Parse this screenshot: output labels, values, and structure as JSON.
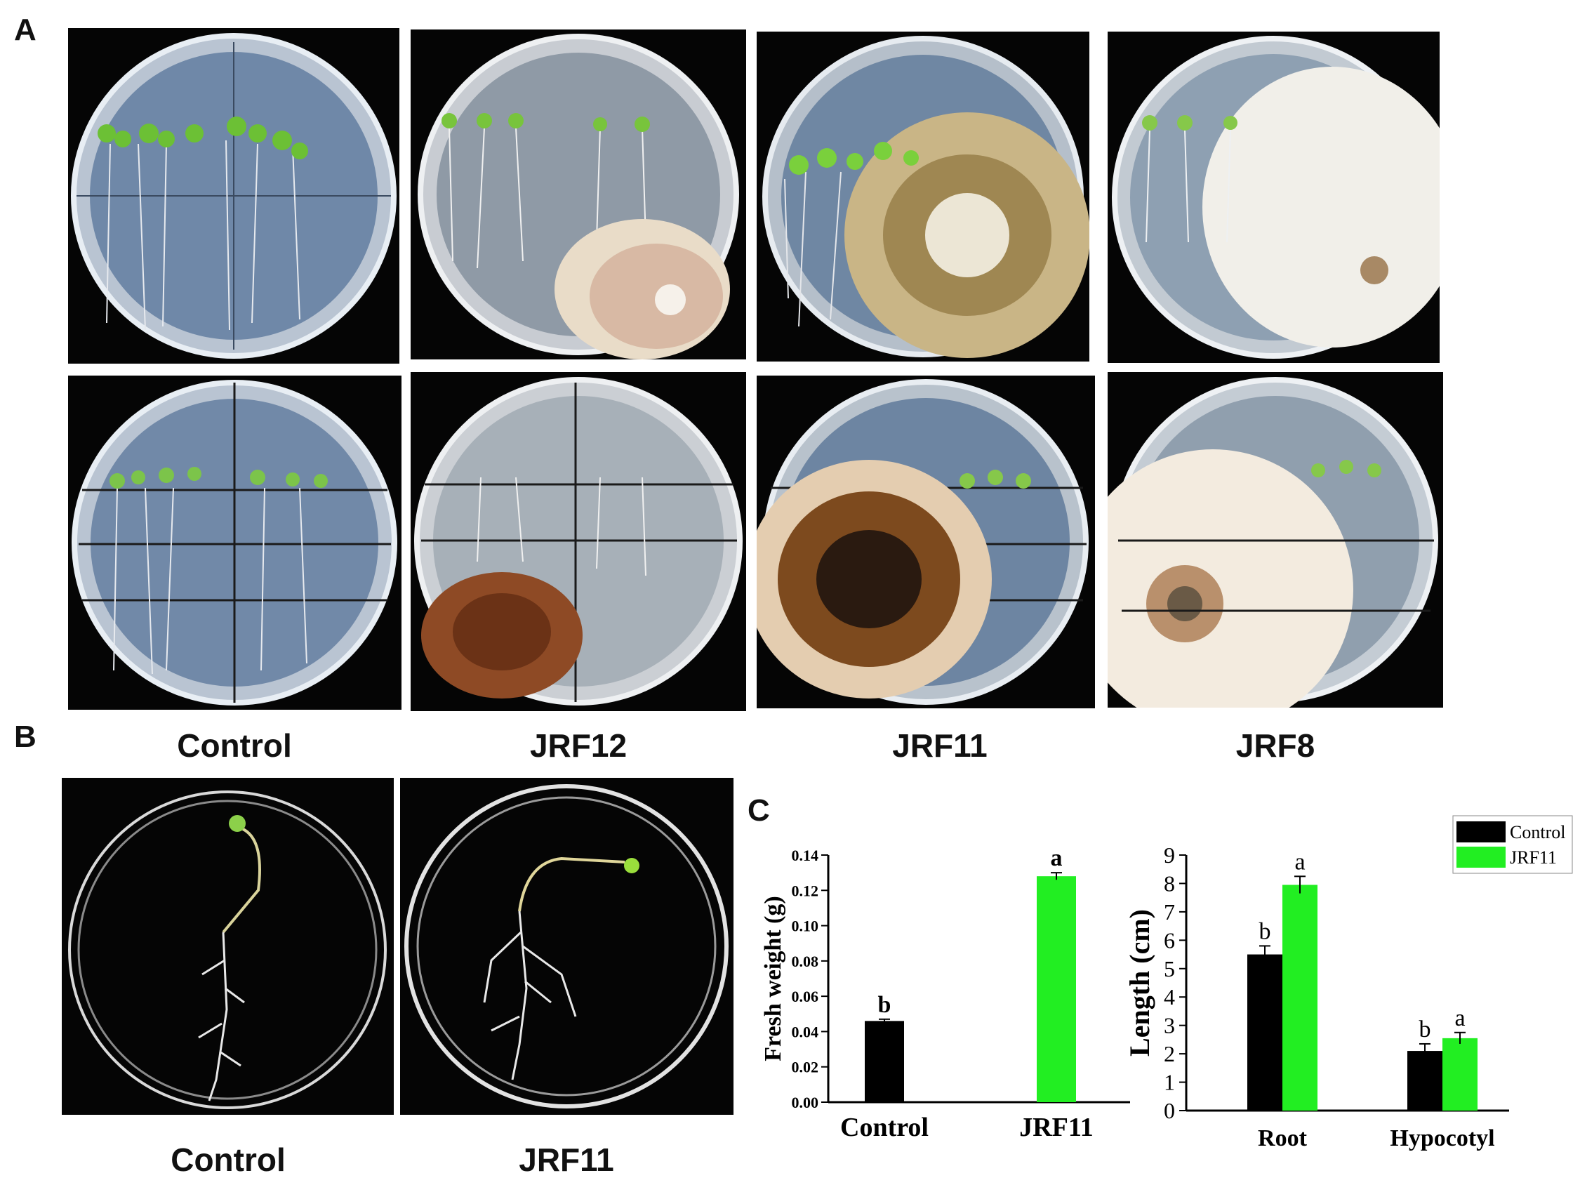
{
  "panels": {
    "a": "A",
    "b": "B",
    "c": "C"
  },
  "panel_a": {
    "labels": [
      "Control",
      "JRF12",
      "JRF11",
      "JRF8"
    ]
  },
  "panel_b": {
    "labels": [
      "Control",
      "JRF11"
    ]
  },
  "colors": {
    "control": "#000000",
    "jrf11": "#22ee22",
    "background": "#ffffff"
  },
  "chart_data": [
    {
      "type": "bar",
      "categories": [
        "Control",
        "JRF11"
      ],
      "values": [
        0.046,
        0.128
      ],
      "errors": [
        0.001,
        0.002
      ],
      "letters": [
        "b",
        "a"
      ],
      "colors": [
        "#000000",
        "#22ee22"
      ],
      "ylabel": "Fresh weight (g)",
      "ylim": [
        0,
        0.14
      ],
      "yticks": [
        "0.00",
        "0.02",
        "0.04",
        "0.06",
        "0.08",
        "0.10",
        "0.12",
        "0.14"
      ]
    },
    {
      "type": "bar",
      "categories": [
        "Root",
        "Hypocotyl"
      ],
      "series": [
        {
          "name": "Control",
          "values": [
            5.5,
            2.1
          ],
          "errors": [
            0.3,
            0.25
          ],
          "letters": [
            "b",
            "b"
          ],
          "color": "#000000"
        },
        {
          "name": "JRF11",
          "values": [
            7.95,
            2.55
          ],
          "errors": [
            0.3,
            0.2
          ],
          "letters": [
            "a",
            "a"
          ],
          "color": "#22ee22"
        }
      ],
      "ylabel": "Length (cm)",
      "ylim": [
        0,
        9
      ],
      "yticks": [
        "0",
        "1",
        "2",
        "3",
        "4",
        "5",
        "6",
        "7",
        "8",
        "9"
      ],
      "legend": "top-right"
    }
  ]
}
